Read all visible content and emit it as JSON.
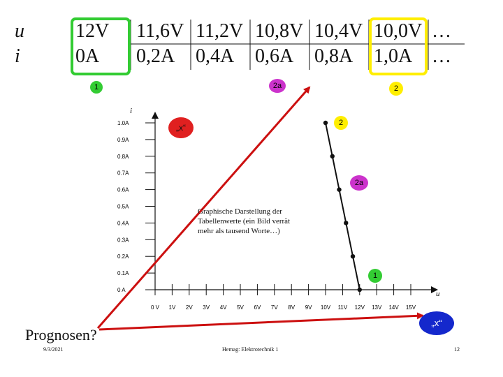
{
  "table": {
    "row_labels": [
      "u",
      "i"
    ],
    "u_values": [
      "12V",
      "11,6V",
      "11,2V",
      "10,8V",
      "10,4V",
      "10,0V",
      "…"
    ],
    "i_values": [
      "0A",
      "0,2A",
      "0,4A",
      "0,6A",
      "0,8A",
      "1,0A",
      "…"
    ],
    "frame_colors": {
      "first": "#33cc33",
      "last": "#ffee00"
    }
  },
  "badges": {
    "one_label": "1",
    "two_label": "2",
    "two_a_label": "2a",
    "x_label": "„x“",
    "x_color": "#e02020",
    "x2_color": "#1428cc",
    "one_color": "#33cc33",
    "two_color": "#ffee00",
    "two_a_color": "#cc33cc"
  },
  "chart_data": {
    "type": "line",
    "title": "",
    "xlabel": "u",
    "ylabel": "i",
    "x_ticks": [
      "0 V",
      "1V",
      "2V",
      "3V",
      "4V",
      "5V",
      "6V",
      "7V",
      "8V",
      "9V",
      "10V",
      "11V",
      "12V",
      "13V",
      "14V",
      "15V"
    ],
    "y_ticks": [
      "0 A",
      "0.1A",
      "0.2A",
      "0.3A",
      "0.4A",
      "0.5A",
      "0.6A",
      "0.7A",
      "0.8A",
      "0.9A",
      "1.0A"
    ],
    "xlim": [
      0,
      15
    ],
    "ylim": [
      0,
      1.0
    ],
    "series": [
      {
        "x": [
          12,
          11.6,
          11.2,
          10.8,
          10.4,
          10.0
        ],
        "y": [
          0,
          0.2,
          0.4,
          0.6,
          0.8,
          1.0
        ]
      }
    ]
  },
  "caption": "Graphische Darstellung der Tabellenwerte (ein Bild verrät mehr als tausend Worte…)",
  "prognosen": "Prognosen?",
  "footer": {
    "date": "9/3/2021",
    "center": "Hemag: Elektrotechnik 1",
    "page": "12"
  }
}
